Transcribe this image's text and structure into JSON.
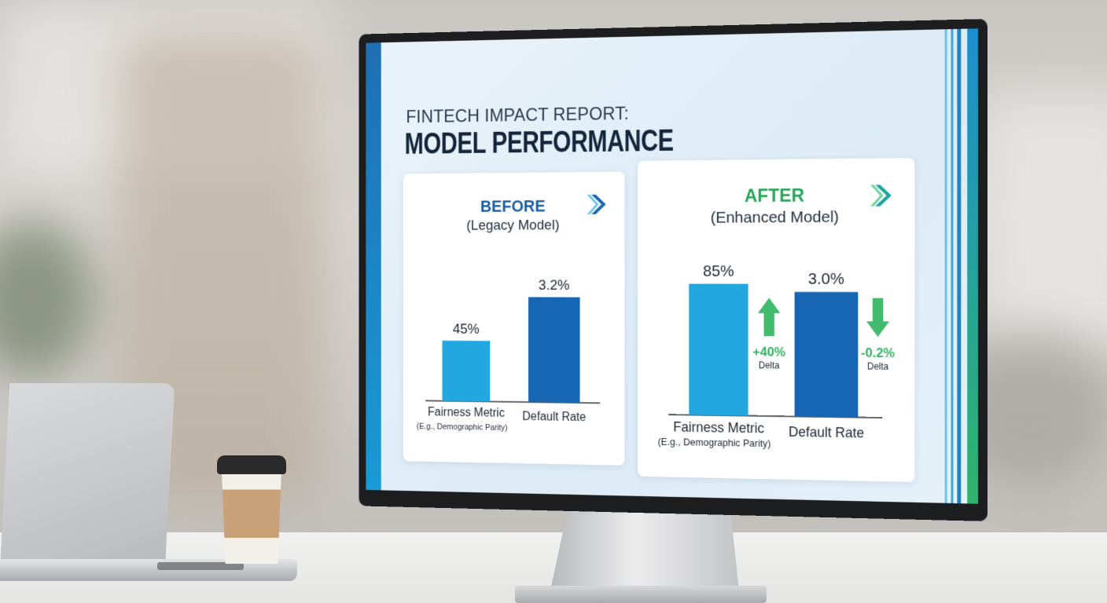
{
  "report": {
    "kicker": "FINTECH IMPACT REPORT:",
    "title": "MODEL PERFORMANCE"
  },
  "colors": {
    "fairness_bar": "#22a7e0",
    "default_bar": "#1766b3",
    "before_title": "#1b5fa3",
    "after_title": "#2aa55a",
    "delta_up": "#2fb45f",
    "delta_down": "#2fb45f"
  },
  "panels": {
    "before": {
      "title": "BEFORE",
      "subtitle": "(Legacy Model)",
      "icon": "chevron-right-icon"
    },
    "after": {
      "title": "AFTER",
      "subtitle": "(Enhanced Model)",
      "icon": "chevron-right-icon"
    }
  },
  "chart_data": [
    {
      "type": "bar",
      "panel": "before",
      "categories": [
        "Fairness Metric",
        "Default Rate"
      ],
      "category_notes": [
        "(E.g., Demographic Parity)",
        ""
      ],
      "data_labels": [
        "45%",
        "3.2%"
      ],
      "values": [
        45,
        3.2
      ],
      "relative_heights": [
        0.58,
        1.0
      ]
    },
    {
      "type": "bar",
      "panel": "after",
      "categories": [
        "Fairness Metric",
        "Default Rate"
      ],
      "category_notes": [
        "(E.g., Demographic Parity)",
        ""
      ],
      "data_labels": [
        "85%",
        "3.0%"
      ],
      "values": [
        85,
        3.0
      ],
      "relative_heights": [
        1.0,
        0.94
      ],
      "deltas": [
        {
          "value": "+40%",
          "label": "Delta",
          "direction": "up"
        },
        {
          "value": "-0.2%",
          "label": "Delta",
          "direction": "down"
        }
      ]
    }
  ]
}
